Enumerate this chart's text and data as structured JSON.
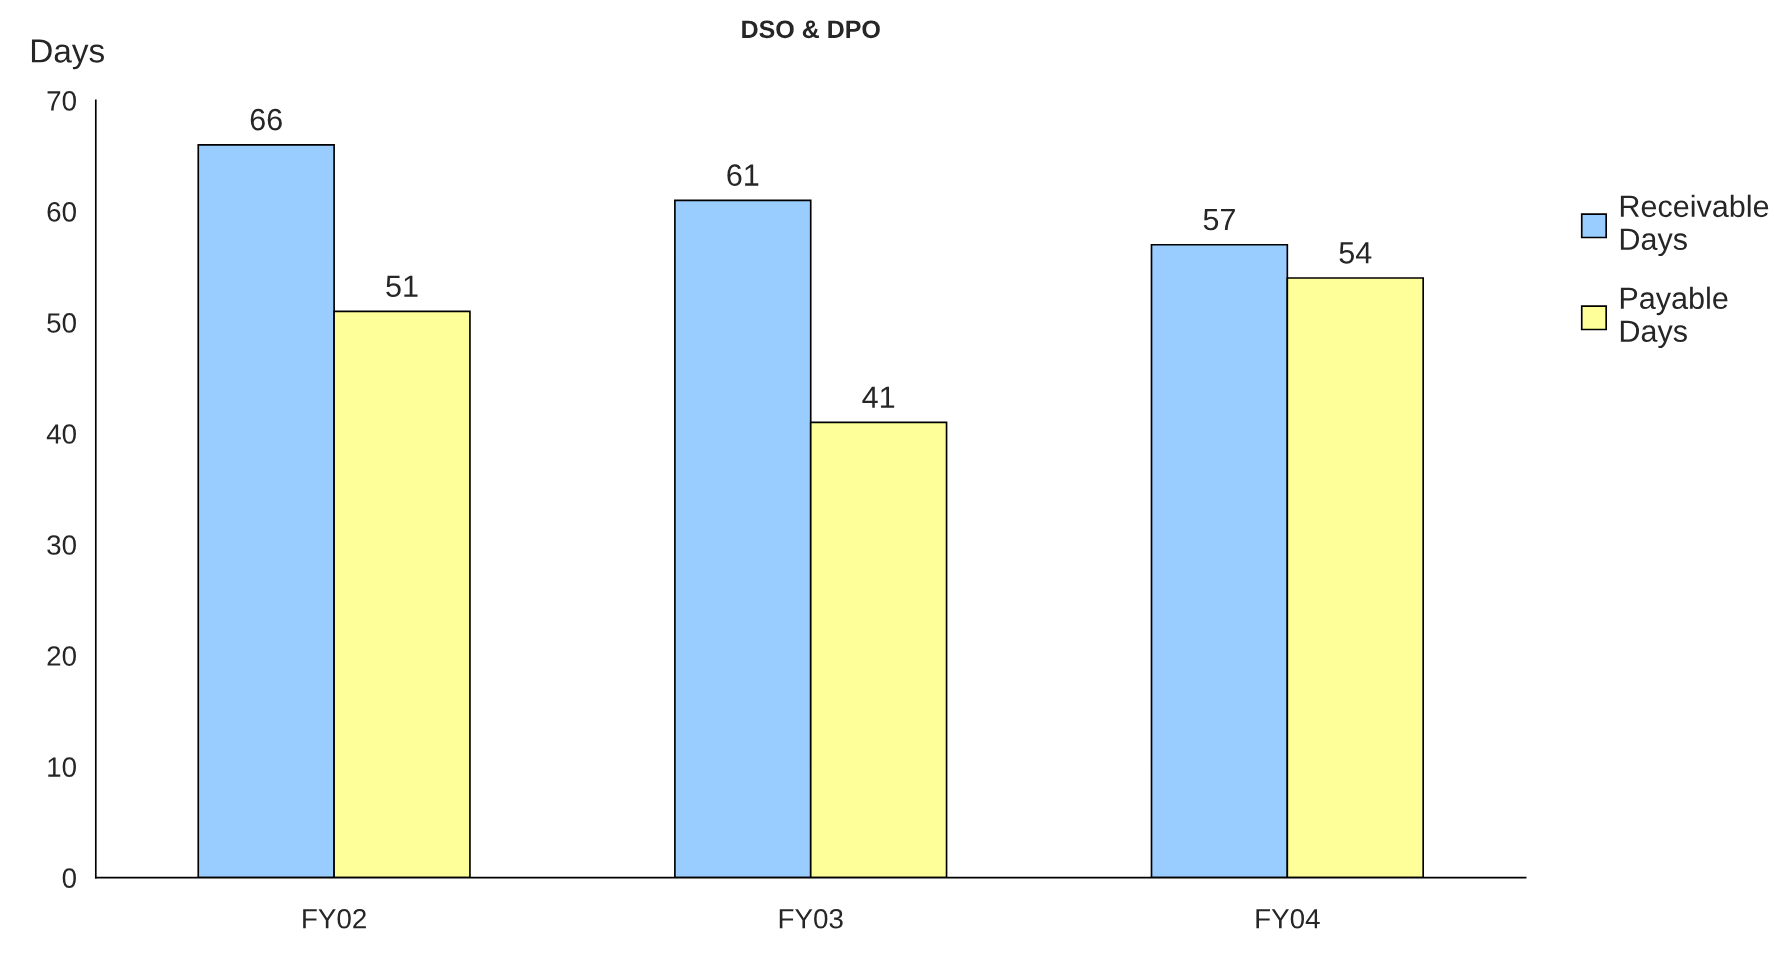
{
  "chart_data": {
    "type": "bar",
    "title": "DSO & DPO",
    "ylabel": "Days",
    "categories": [
      "FY02",
      "FY03",
      "FY04"
    ],
    "series": [
      {
        "name": "Receivable Days",
        "color": "#99ccff",
        "values": [
          66,
          61,
          57
        ]
      },
      {
        "name": "Payable Days",
        "color": "#ffff99",
        "values": [
          51,
          41,
          54
        ]
      }
    ],
    "ylim": [
      0,
      70
    ],
    "yticks": [
      0,
      10,
      20,
      30,
      40,
      50,
      60,
      70
    ],
    "data_labels": true,
    "grid": false,
    "legend": "right"
  }
}
